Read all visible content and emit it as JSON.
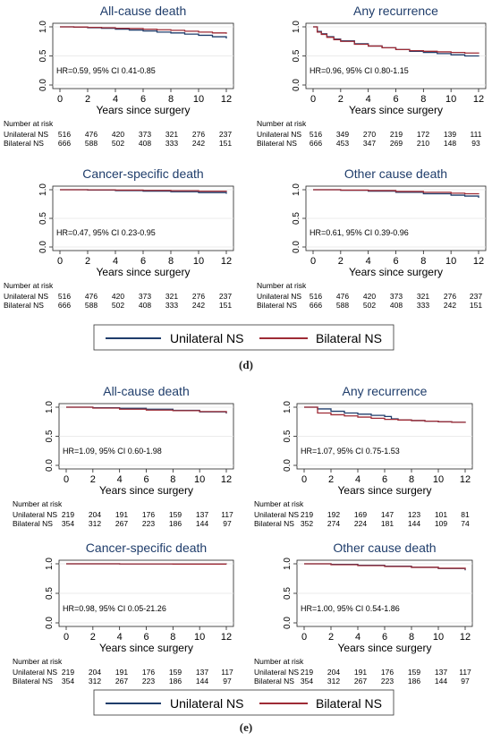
{
  "colors": {
    "unilateral": "#1f3d6b",
    "bilateral": "#9e2b35"
  },
  "legend": {
    "unilateral": "Unilateral NS",
    "bilateral": "Bilateral NS"
  },
  "figure_labels": {
    "d": "(d)",
    "e": "(e)"
  },
  "risk_table": {
    "header": "Number at risk",
    "d": {
      "unilateral": {
        "label": "Unilateral NS",
        "values": [
          516,
          476,
          420,
          373,
          321,
          276,
          237
        ]
      },
      "bilateral": {
        "label": "Bilateral NS",
        "values": [
          666,
          588,
          502,
          408,
          333,
          242,
          151
        ]
      },
      "recurrence_unilateral": {
        "label": "Unilateral NS",
        "values": [
          516,
          349,
          270,
          219,
          172,
          139,
          111
        ]
      },
      "recurrence_bilateral": {
        "label": "Bilateral NS",
        "values": [
          666,
          453,
          347,
          269,
          210,
          148,
          93
        ]
      }
    },
    "e": {
      "unilateral": {
        "label": "Unilateral NS",
        "values": [
          219,
          204,
          191,
          176,
          159,
          137,
          117
        ]
      },
      "bilateral": {
        "label": "Bilateral NS",
        "values": [
          354,
          312,
          267,
          223,
          186,
          144,
          97
        ]
      },
      "recurrence_unilateral": {
        "label": "Unilateral NS",
        "values": [
          219,
          192,
          169,
          147,
          123,
          101,
          81
        ]
      },
      "recurrence_bilateral": {
        "label": "Bilateral NS",
        "values": [
          352,
          274,
          224,
          181,
          144,
          109,
          74
        ]
      }
    }
  },
  "chart_data": [
    {
      "id": "d-allcause",
      "type": "line",
      "title": "All-cause death",
      "xlabel": "Years since surgery",
      "xlim": [
        0,
        12
      ],
      "ylim": [
        0,
        1
      ],
      "yticks": [
        "0.0",
        "0.5",
        "1.0"
      ],
      "xticks": [
        0,
        2,
        4,
        6,
        8,
        10,
        12
      ],
      "annotation": "HR=0.59, 95% CI 0.41-0.85",
      "series": [
        {
          "name": "Unilateral NS",
          "x": [
            0,
            1,
            2,
            3,
            4,
            5,
            6,
            7,
            8,
            9,
            10,
            11,
            12
          ],
          "y": [
            1.0,
            0.995,
            0.985,
            0.975,
            0.96,
            0.945,
            0.93,
            0.91,
            0.895,
            0.875,
            0.855,
            0.83,
            0.8
          ]
        },
        {
          "name": "Bilateral NS",
          "x": [
            0,
            1,
            2,
            3,
            4,
            5,
            6,
            7,
            8,
            9,
            10,
            11,
            12
          ],
          "y": [
            1.0,
            0.997,
            0.99,
            0.985,
            0.975,
            0.97,
            0.96,
            0.95,
            0.94,
            0.925,
            0.91,
            0.895,
            0.88
          ]
        }
      ]
    },
    {
      "id": "d-recurrence",
      "type": "line",
      "title": "Any recurrence",
      "xlabel": "Years since surgery",
      "xlim": [
        0,
        12
      ],
      "ylim": [
        0,
        1
      ],
      "yticks": [
        "0.0",
        "0.5",
        "1.0"
      ],
      "xticks": [
        0,
        2,
        4,
        6,
        8,
        10,
        12
      ],
      "annotation": "HR=0.96, 95% CI 0.80-1.15",
      "series": [
        {
          "name": "Unilateral NS",
          "x": [
            0,
            0.3,
            0.6,
            1,
            1.5,
            2,
            3,
            4,
            5,
            6,
            7,
            8,
            9,
            10,
            11,
            12
          ],
          "y": [
            1.0,
            0.92,
            0.88,
            0.83,
            0.79,
            0.76,
            0.71,
            0.67,
            0.64,
            0.61,
            0.58,
            0.56,
            0.54,
            0.52,
            0.5,
            0.49
          ]
        },
        {
          "name": "Bilateral NS",
          "x": [
            0,
            0.3,
            0.6,
            1,
            1.5,
            2,
            3,
            4,
            5,
            6,
            7,
            8,
            9,
            10,
            11,
            12
          ],
          "y": [
            1.0,
            0.91,
            0.87,
            0.82,
            0.78,
            0.75,
            0.7,
            0.67,
            0.64,
            0.61,
            0.59,
            0.58,
            0.57,
            0.56,
            0.55,
            0.54
          ]
        }
      ]
    },
    {
      "id": "d-cancer",
      "type": "line",
      "title": "Cancer-specific death",
      "xlabel": "Years since surgery",
      "xlim": [
        0,
        12
      ],
      "ylim": [
        0,
        1
      ],
      "yticks": [
        "0.0",
        "0.5",
        "1.0"
      ],
      "xticks": [
        0,
        2,
        4,
        6,
        8,
        10,
        12
      ],
      "annotation": "HR=0.47, 95% CI 0.23-0.95",
      "series": [
        {
          "name": "Unilateral NS",
          "x": [
            0,
            2,
            4,
            6,
            8,
            10,
            12
          ],
          "y": [
            1.0,
            0.995,
            0.985,
            0.975,
            0.965,
            0.95,
            0.93
          ]
        },
        {
          "name": "Bilateral NS",
          "x": [
            0,
            2,
            4,
            6,
            8,
            10,
            12
          ],
          "y": [
            1.0,
            0.998,
            0.993,
            0.988,
            0.982,
            0.975,
            0.965
          ]
        }
      ]
    },
    {
      "id": "d-other",
      "type": "line",
      "title": "Other cause death",
      "xlabel": "Years since surgery",
      "xlim": [
        0,
        12
      ],
      "ylim": [
        0,
        1
      ],
      "yticks": [
        "0.0",
        "0.5",
        "1.0"
      ],
      "xticks": [
        0,
        2,
        4,
        6,
        8,
        10,
        12
      ],
      "annotation": "HR=0.61, 95% CI 0.39-0.96",
      "series": [
        {
          "name": "Unilateral NS",
          "x": [
            0,
            2,
            4,
            6,
            8,
            10,
            11,
            12
          ],
          "y": [
            1.0,
            0.99,
            0.975,
            0.955,
            0.93,
            0.905,
            0.89,
            0.86
          ]
        },
        {
          "name": "Bilateral NS",
          "x": [
            0,
            2,
            4,
            6,
            8,
            10,
            11,
            12
          ],
          "y": [
            1.0,
            0.993,
            0.985,
            0.97,
            0.955,
            0.94,
            0.93,
            0.92
          ]
        }
      ]
    },
    {
      "id": "e-allcause",
      "type": "line",
      "title": "All-cause death",
      "xlabel": "Years since surgery",
      "xlim": [
        0,
        12
      ],
      "ylim": [
        0,
        1
      ],
      "yticks": [
        "0.0",
        "0.5",
        "1.0"
      ],
      "xticks": [
        0,
        2,
        4,
        6,
        8,
        10,
        12
      ],
      "annotation": "HR=1.09, 95% CI 0.60-1.98",
      "series": [
        {
          "name": "Unilateral NS",
          "x": [
            0,
            2,
            4,
            6,
            8,
            10,
            12
          ],
          "y": [
            1.0,
            0.99,
            0.98,
            0.965,
            0.945,
            0.92,
            0.89
          ]
        },
        {
          "name": "Bilateral NS",
          "x": [
            0,
            2,
            4,
            6,
            8,
            10,
            12
          ],
          "y": [
            1.0,
            0.985,
            0.965,
            0.95,
            0.94,
            0.925,
            0.9
          ]
        }
      ]
    },
    {
      "id": "e-recurrence",
      "type": "line",
      "title": "Any recurrence",
      "xlabel": "Years since surgery",
      "xlim": [
        0,
        12
      ],
      "ylim": [
        0,
        1
      ],
      "yticks": [
        "0.0",
        "0.5",
        "1.0"
      ],
      "xticks": [
        0,
        2,
        4,
        6,
        8,
        10,
        12
      ],
      "annotation": "HR=1.07, 95% CI 0.75-1.53",
      "series": [
        {
          "name": "Unilateral NS",
          "x": [
            0,
            1,
            2,
            3,
            4,
            5,
            6,
            6.5,
            7,
            8,
            9,
            10,
            11,
            12
          ],
          "y": [
            1.0,
            0.97,
            0.93,
            0.9,
            0.88,
            0.86,
            0.84,
            0.8,
            0.78,
            0.77,
            0.76,
            0.75,
            0.74,
            0.73
          ]
        },
        {
          "name": "Bilateral NS",
          "x": [
            0,
            1,
            2,
            3,
            4,
            5,
            6,
            7,
            8,
            9,
            10,
            11,
            12
          ],
          "y": [
            1.0,
            0.9,
            0.87,
            0.85,
            0.83,
            0.81,
            0.79,
            0.78,
            0.77,
            0.76,
            0.75,
            0.74,
            0.73
          ]
        }
      ]
    },
    {
      "id": "e-cancer",
      "type": "line",
      "title": "Cancer-specific death",
      "xlabel": "Years since surgery",
      "xlim": [
        0,
        12
      ],
      "ylim": [
        0,
        1
      ],
      "yticks": [
        "0.0",
        "0.5",
        "1.0"
      ],
      "xticks": [
        0,
        2,
        4,
        6,
        8,
        10,
        12
      ],
      "annotation": "HR=0.98, 95% CI 0.05-21.26",
      "series": [
        {
          "name": "Unilateral NS",
          "x": [
            0,
            4,
            8,
            12
          ],
          "y": [
            1.0,
            0.998,
            0.996,
            0.994
          ]
        },
        {
          "name": "Bilateral NS",
          "x": [
            0,
            4,
            8,
            12
          ],
          "y": [
            1.0,
            0.998,
            0.995,
            0.993
          ]
        }
      ]
    },
    {
      "id": "e-other",
      "type": "line",
      "title": "Other cause death",
      "xlabel": "Years since surgery",
      "xlim": [
        0,
        12
      ],
      "ylim": [
        0,
        1
      ],
      "yticks": [
        "0.0",
        "0.5",
        "1.0"
      ],
      "xticks": [
        0,
        2,
        4,
        6,
        8,
        10,
        12
      ],
      "annotation": "HR=1.00, 95% CI 0.54-1.86",
      "series": [
        {
          "name": "Unilateral NS",
          "x": [
            0,
            2,
            4,
            6,
            8,
            10,
            12
          ],
          "y": [
            1.0,
            0.99,
            0.975,
            0.96,
            0.94,
            0.92,
            0.89
          ]
        },
        {
          "name": "Bilateral NS",
          "x": [
            0,
            2,
            4,
            6,
            8,
            10,
            12
          ],
          "y": [
            1.0,
            0.985,
            0.97,
            0.955,
            0.94,
            0.925,
            0.9
          ]
        }
      ]
    }
  ]
}
